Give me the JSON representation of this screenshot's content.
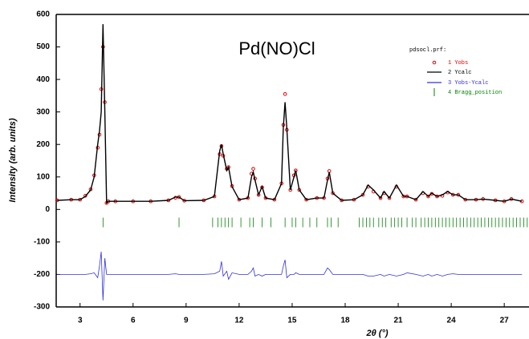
{
  "chart_data": {
    "type": "line",
    "title": "Pd(NO)Cl",
    "xlabel": "2θ (°)",
    "ylabel": "Intensity (arb. units)",
    "legend_title": "pdsocl.prf:",
    "xlim": [
      1.65,
      28.4
    ],
    "xticks": [
      3,
      6,
      9,
      12,
      15,
      18,
      21,
      24,
      27
    ],
    "ylim": [
      -300,
      600
    ],
    "yticks": [
      -300,
      -200,
      -100,
      0,
      100,
      200,
      300,
      400,
      500,
      600
    ],
    "x": [
      1.7,
      2.5,
      3.0,
      3.3,
      3.6,
      3.8,
      4.0,
      4.1,
      4.2,
      4.3,
      4.4,
      4.5,
      4.6,
      5.0,
      6.0,
      7.0,
      8.0,
      8.4,
      8.6,
      8.9,
      10.0,
      10.6,
      10.9,
      11.0,
      11.1,
      11.3,
      11.4,
      11.6,
      12.0,
      12.5,
      12.7,
      12.8,
      12.9,
      13.1,
      13.3,
      13.5,
      14.0,
      14.4,
      14.5,
      14.6,
      14.7,
      14.9,
      15.1,
      15.2,
      15.4,
      15.8,
      16.4,
      16.8,
      17.0,
      17.1,
      17.3,
      17.8,
      18.5,
      19.0,
      19.3,
      19.6,
      20.0,
      20.2,
      20.5,
      20.9,
      21.3,
      21.5,
      22.0,
      22.4,
      22.7,
      22.9,
      23.2,
      23.5,
      23.8,
      24.1,
      24.4,
      24.8,
      25.4,
      25.8,
      26.5,
      27.0,
      27.4,
      28.0
    ],
    "series": [
      {
        "name": "1  Yobs",
        "color": "#e00000",
        "style": "circle",
        "values": [
          28,
          30,
          30,
          42,
          62,
          105,
          190,
          230,
          370,
          500,
          330,
          20,
          25,
          25,
          25,
          25,
          28,
          36,
          38,
          27,
          28,
          40,
          170,
          195,
          165,
          125,
          130,
          72,
          30,
          35,
          110,
          125,
          95,
          45,
          68,
          35,
          30,
          80,
          260,
          355,
          245,
          60,
          105,
          120,
          60,
          30,
          35,
          35,
          95,
          118,
          50,
          28,
          30,
          45,
          70,
          55,
          35,
          50,
          35,
          70,
          40,
          40,
          30,
          50,
          40,
          48,
          40,
          42,
          52,
          45,
          45,
          30,
          30,
          32,
          28,
          25,
          32,
          25
        ]
      },
      {
        "name": "2  Ycalc",
        "color": "#000000",
        "style": "line",
        "values": [
          28,
          30,
          30,
          40,
          60,
          100,
          200,
          240,
          300,
          570,
          300,
          20,
          25,
          25,
          25,
          25,
          28,
          38,
          38,
          27,
          28,
          40,
          180,
          200,
          170,
          120,
          130,
          70,
          30,
          35,
          100,
          115,
          90,
          45,
          70,
          35,
          30,
          80,
          250,
          330,
          250,
          60,
          100,
          120,
          60,
          30,
          35,
          35,
          90,
          115,
          50,
          28,
          30,
          45,
          75,
          60,
          35,
          55,
          35,
          75,
          40,
          40,
          30,
          55,
          40,
          50,
          40,
          45,
          55,
          45,
          45,
          30,
          30,
          32,
          28,
          25,
          32,
          25
        ]
      },
      {
        "name": "3  Yobs-Ycalc",
        "color": "#3030e0",
        "style": "line",
        "values": [
          -200,
          -200,
          -200,
          -200,
          -198,
          -195,
          -210,
          -175,
          -130,
          -280,
          -150,
          -200,
          -200,
          -200,
          -200,
          -200,
          -200,
          -198,
          -200,
          -200,
          -200,
          -198,
          -190,
          -160,
          -205,
          -190,
          -215,
          -195,
          -200,
          -200,
          -190,
          -180,
          -205,
          -200,
          -205,
          -200,
          -200,
          -200,
          -175,
          -155,
          -210,
          -200,
          -200,
          -195,
          -200,
          -200,
          -200,
          -200,
          -180,
          -185,
          -200,
          -200,
          -200,
          -200,
          -205,
          -205,
          -200,
          -205,
          -200,
          -205,
          -200,
          -195,
          -200,
          -205,
          -200,
          -205,
          -200,
          -205,
          -200,
          -198,
          -200,
          -200,
          -200,
          -200,
          -200,
          -200,
          -200,
          -200
        ]
      },
      {
        "name": "4  Bragg_position",
        "color": "#008000",
        "style": "tick",
        "y": -40,
        "x": [
          4.3,
          8.6,
          10.5,
          10.8,
          11.0,
          11.2,
          11.4,
          11.6,
          12.1,
          12.6,
          12.8,
          13.3,
          13.8,
          14.6,
          15.0,
          15.2,
          15.6,
          16.0,
          16.4,
          17.0,
          17.2,
          17.6,
          18.8,
          19.0,
          19.2,
          19.4,
          19.6,
          19.9,
          20.1,
          20.3,
          20.6,
          20.8,
          21.0,
          21.2,
          21.5,
          21.8,
          22.0,
          22.3,
          22.5,
          22.7,
          22.9,
          23.1,
          23.3,
          23.5,
          23.7,
          23.9,
          24.1,
          24.3,
          24.5,
          24.7,
          24.9,
          25.1,
          25.3,
          25.5,
          25.7,
          25.9,
          26.1,
          26.3,
          26.5,
          26.7,
          26.9,
          27.1,
          27.3,
          27.5,
          27.7,
          27.9,
          28.1,
          28.3
        ]
      }
    ]
  }
}
